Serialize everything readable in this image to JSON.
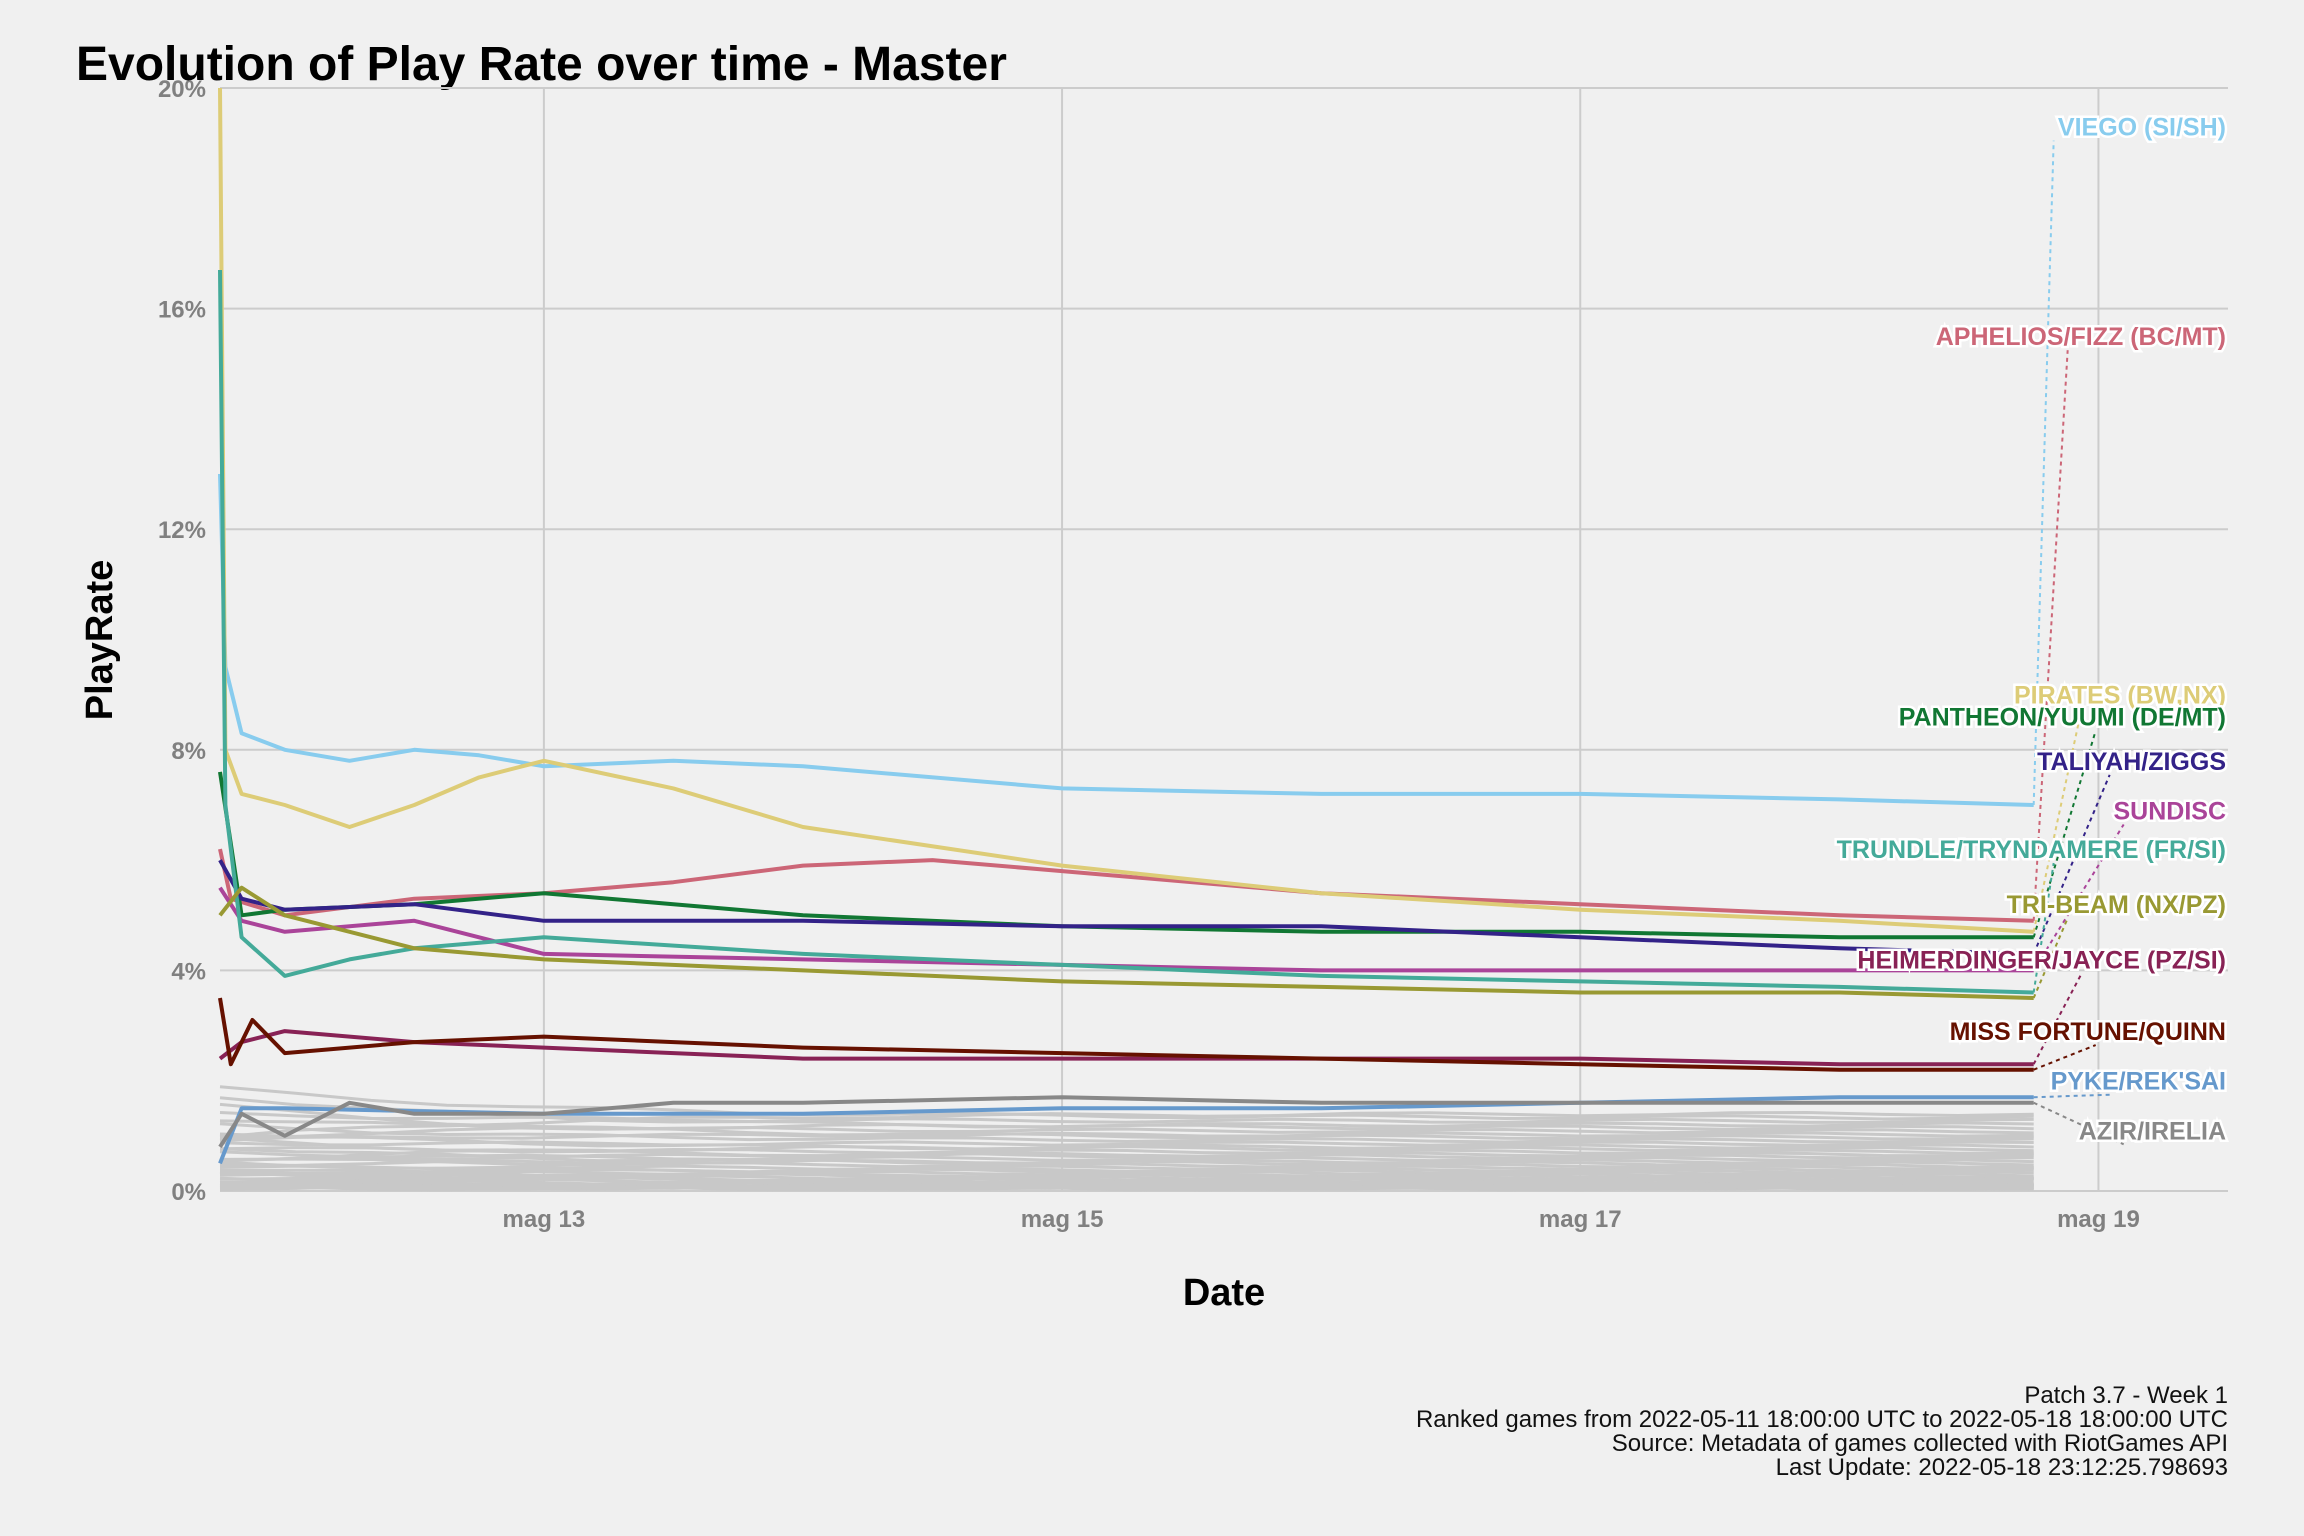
{
  "chart_data": {
    "type": "line",
    "title": "Evolution of Play Rate over time - Master",
    "xlabel": "Date",
    "ylabel": "PlayRate",
    "x_range": [
      "2022-05-11 18:00",
      "2022-05-19 12:00"
    ],
    "y_range": [
      0,
      20
    ],
    "y_unit": "%",
    "grid": true,
    "legend": "direct-labels-right",
    "y_ticks": [
      "0%",
      "4%",
      "8%",
      "12%",
      "16%",
      "20%"
    ],
    "x_ticks": [
      {
        "label": "mag 13",
        "date": "2022-05-13"
      },
      {
        "label": "mag 15",
        "date": "2022-05-15"
      },
      {
        "label": "mag 17",
        "date": "2022-05-17"
      },
      {
        "label": "mag 19",
        "date": "2022-05-19"
      }
    ],
    "series": [
      {
        "name": "VIEGO (SI/SH)",
        "color": "#88ccee",
        "x": [
          "2022-05-11 18:00",
          "2022-05-11 18:30",
          "2022-05-11 20:00",
          "2022-05-12 00:00",
          "2022-05-12 06:00",
          "2022-05-12 12:00",
          "2022-05-12 18:00",
          "2022-05-13 00:00",
          "2022-05-13 12:00",
          "2022-05-14 00:00",
          "2022-05-15 00:00",
          "2022-05-16 00:00",
          "2022-05-17 00:00",
          "2022-05-18 00:00",
          "2022-05-18 18:00"
        ],
        "y": [
          13.0,
          9.5,
          8.3,
          8.0,
          7.8,
          8.0,
          7.9,
          7.7,
          7.8,
          7.7,
          7.3,
          7.2,
          7.2,
          7.1,
          7.0
        ]
      },
      {
        "name": "APHELIOS/FIZZ (BC/MT)",
        "color": "#cc6677",
        "x": [
          "2022-05-11 18:00",
          "2022-05-11 19:00",
          "2022-05-12 00:00",
          "2022-05-12 12:00",
          "2022-05-13 00:00",
          "2022-05-13 12:00",
          "2022-05-14 00:00",
          "2022-05-14 12:00",
          "2022-05-15 00:00",
          "2022-05-16 00:00",
          "2022-05-17 00:00",
          "2022-05-18 00:00",
          "2022-05-18 18:00"
        ],
        "y": [
          6.2,
          5.3,
          5.0,
          5.3,
          5.4,
          5.6,
          5.9,
          6.0,
          5.8,
          5.4,
          5.2,
          5.0,
          4.9
        ]
      },
      {
        "name": "PIRATES (BW,NX)",
        "color": "#ddcc77",
        "x": [
          "2022-05-11 18:00",
          "2022-05-11 18:30",
          "2022-05-11 20:00",
          "2022-05-12 00:00",
          "2022-05-12 06:00",
          "2022-05-12 12:00",
          "2022-05-12 18:00",
          "2022-05-13 00:00",
          "2022-05-13 12:00",
          "2022-05-14 00:00",
          "2022-05-15 00:00",
          "2022-05-16 00:00",
          "2022-05-17 00:00",
          "2022-05-18 00:00",
          "2022-05-18 18:00"
        ],
        "y": [
          20.0,
          8.0,
          7.2,
          7.0,
          6.6,
          7.0,
          7.5,
          7.8,
          7.3,
          6.6,
          5.9,
          5.4,
          5.1,
          4.9,
          4.7
        ]
      },
      {
        "name": "PANTHEON/YUUMI (DE/MT)",
        "color": "#117733",
        "x": [
          "2022-05-11 18:00",
          "2022-05-11 20:00",
          "2022-05-12 00:00",
          "2022-05-12 12:00",
          "2022-05-13 00:00",
          "2022-05-13 12:00",
          "2022-05-14 00:00",
          "2022-05-15 00:00",
          "2022-05-16 00:00",
          "2022-05-17 00:00",
          "2022-05-18 00:00",
          "2022-05-18 18:00"
        ],
        "y": [
          7.6,
          5.0,
          5.1,
          5.2,
          5.4,
          5.2,
          5.0,
          4.8,
          4.7,
          4.7,
          4.6,
          4.6
        ]
      },
      {
        "name": "TALIYAH/ZIGGS",
        "color": "#332288",
        "x": [
          "2022-05-11 18:00",
          "2022-05-11 20:00",
          "2022-05-12 00:00",
          "2022-05-12 12:00",
          "2022-05-13 00:00",
          "2022-05-14 00:00",
          "2022-05-15 00:00",
          "2022-05-16 00:00",
          "2022-05-17 00:00",
          "2022-05-18 00:00",
          "2022-05-18 18:00"
        ],
        "y": [
          6.0,
          5.3,
          5.1,
          5.2,
          4.9,
          4.9,
          4.8,
          4.8,
          4.6,
          4.4,
          4.3
        ]
      },
      {
        "name": "SUNDISC",
        "color": "#aa4499",
        "x": [
          "2022-05-11 18:00",
          "2022-05-11 20:00",
          "2022-05-12 00:00",
          "2022-05-12 12:00",
          "2022-05-13 00:00",
          "2022-05-14 00:00",
          "2022-05-15 00:00",
          "2022-05-16 00:00",
          "2022-05-17 00:00",
          "2022-05-18 00:00",
          "2022-05-18 18:00"
        ],
        "y": [
          5.5,
          4.9,
          4.7,
          4.9,
          4.3,
          4.2,
          4.1,
          4.0,
          4.0,
          4.0,
          4.0
        ]
      },
      {
        "name": "TRUNDLE/TRYNDAMERE (FR/SI)",
        "color": "#44aa99",
        "x": [
          "2022-05-11 18:00",
          "2022-05-11 18:30",
          "2022-05-11 20:00",
          "2022-05-12 00:00",
          "2022-05-12 06:00",
          "2022-05-12 12:00",
          "2022-05-13 00:00",
          "2022-05-14 00:00",
          "2022-05-15 00:00",
          "2022-05-16 00:00",
          "2022-05-17 00:00",
          "2022-05-18 00:00",
          "2022-05-18 18:00"
        ],
        "y": [
          16.7,
          7.0,
          4.6,
          3.9,
          4.2,
          4.4,
          4.6,
          4.3,
          4.1,
          3.9,
          3.8,
          3.7,
          3.6
        ]
      },
      {
        "name": "TRI-BEAM (NX/PZ)",
        "color": "#999933",
        "x": [
          "2022-05-11 18:00",
          "2022-05-11 20:00",
          "2022-05-12 00:00",
          "2022-05-12 12:00",
          "2022-05-13 00:00",
          "2022-05-14 00:00",
          "2022-05-15 00:00",
          "2022-05-16 00:00",
          "2022-05-17 00:00",
          "2022-05-18 00:00",
          "2022-05-18 18:00"
        ],
        "y": [
          5.0,
          5.5,
          5.0,
          4.4,
          4.2,
          4.0,
          3.8,
          3.7,
          3.6,
          3.6,
          3.5
        ]
      },
      {
        "name": "HEIMERDINGER/JAYCE (PZ/SI)",
        "color": "#882255",
        "x": [
          "2022-05-11 18:00",
          "2022-05-11 20:00",
          "2022-05-12 00:00",
          "2022-05-12 12:00",
          "2022-05-13 00:00",
          "2022-05-14 00:00",
          "2022-05-15 00:00",
          "2022-05-16 00:00",
          "2022-05-17 00:00",
          "2022-05-18 00:00",
          "2022-05-18 18:00"
        ],
        "y": [
          2.4,
          2.7,
          2.9,
          2.7,
          2.6,
          2.4,
          2.4,
          2.4,
          2.4,
          2.3,
          2.3
        ]
      },
      {
        "name": "MISS FORTUNE/QUINN",
        "color": "#661100",
        "x": [
          "2022-05-11 18:00",
          "2022-05-11 19:00",
          "2022-05-11 21:00",
          "2022-05-12 00:00",
          "2022-05-12 12:00",
          "2022-05-13 00:00",
          "2022-05-14 00:00",
          "2022-05-15 00:00",
          "2022-05-16 00:00",
          "2022-05-17 00:00",
          "2022-05-18 00:00",
          "2022-05-18 18:00"
        ],
        "y": [
          3.5,
          2.3,
          3.1,
          2.5,
          2.7,
          2.8,
          2.6,
          2.5,
          2.4,
          2.3,
          2.2,
          2.2
        ]
      },
      {
        "name": "PYKE/REK'SAI",
        "color": "#6699cc",
        "x": [
          "2022-05-11 18:00",
          "2022-05-11 20:00",
          "2022-05-12 00:00",
          "2022-05-13 00:00",
          "2022-05-14 00:00",
          "2022-05-15 00:00",
          "2022-05-16 00:00",
          "2022-05-17 00:00",
          "2022-05-18 00:00",
          "2022-05-18 18:00"
        ],
        "y": [
          0.5,
          1.5,
          1.5,
          1.4,
          1.4,
          1.5,
          1.5,
          1.6,
          1.7,
          1.7
        ]
      },
      {
        "name": "AZIR/IRELIA",
        "color": "#888888",
        "x": [
          "2022-05-11 18:00",
          "2022-05-11 20:00",
          "2022-05-12 00:00",
          "2022-05-12 06:00",
          "2022-05-12 12:00",
          "2022-05-13 00:00",
          "2022-05-13 12:00",
          "2022-05-14 00:00",
          "2022-05-15 00:00",
          "2022-05-16 00:00",
          "2022-05-17 00:00",
          "2022-05-18 00:00",
          "2022-05-18 18:00"
        ],
        "y": [
          0.8,
          1.4,
          1.0,
          1.6,
          1.4,
          1.4,
          1.6,
          1.6,
          1.7,
          1.6,
          1.6,
          1.6,
          1.6
        ]
      }
    ]
  },
  "caption": {
    "line1": "Patch 3.7 - Week 1",
    "line2": "Ranked games from 2022-05-11 18:00:00 UTC to 2022-05-18 18:00:00 UTC",
    "line3": "Source: Metadata of games collected with RiotGames API",
    "line4": "Last Update: 2022-05-18 23:12:25.798693"
  }
}
